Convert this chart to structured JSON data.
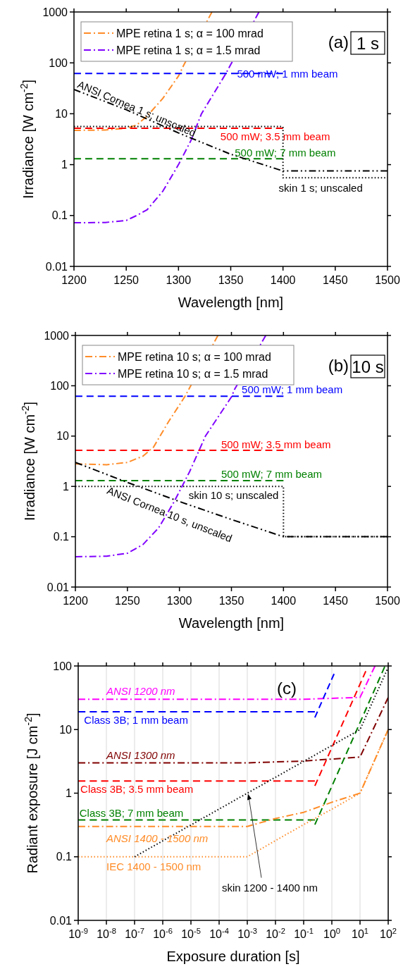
{
  "chart_data": [
    {
      "type": "line",
      "title": "(a)",
      "subtitle": "1 s",
      "xlabel": "Wavelength [nm]",
      "ylabel": "Irradiance [W cm$^{-2}$]",
      "log": "y",
      "legend": "top left",
      "grid": false,
      "xlim": [
        1200,
        1500
      ],
      "xticks": [
        1200,
        1250,
        1300,
        1350,
        1400,
        1450,
        1500
      ],
      "ylim": [
        0.01,
        1000
      ],
      "yticks": [
        0.01,
        0.1,
        1,
        10,
        100,
        1000
      ],
      "series": [
        {
          "name": "MPE retina 1 s; α = 100 mrad",
          "color": "#ff8c28",
          "line_style": "dashdot",
          "x": [
            1200,
            1230,
            1250,
            1260,
            1270,
            1285,
            1300,
            1305,
            1332
          ],
          "values": [
            4.7,
            4.8,
            5.2,
            6,
            9,
            20,
            55,
            90,
            1000
          ]
        },
        {
          "name": "MPE retina 1 s; α = 1.5 mrad",
          "color": "#8000ff",
          "line_style": "dashdot",
          "x": [
            1200,
            1230,
            1250,
            1260,
            1270,
            1285,
            1300,
            1312,
            1322,
            1345,
            1349,
            1377
          ],
          "values": [
            0.072,
            0.073,
            0.08,
            0.1,
            0.13,
            0.3,
            1,
            3,
            10,
            60,
            85,
            1000
          ]
        },
        {
          "color": "#0000ff",
          "line_style": "dashed",
          "x": [
            1200,
            1400
          ],
          "values": [
            62,
            62
          ]
        },
        {
          "color": "#ff0000",
          "line_style": "dashed",
          "x": [
            1200,
            1400
          ],
          "values": [
            5.2,
            5.2
          ]
        },
        {
          "color": "#008000",
          "line_style": "dashed",
          "x": [
            1200,
            1400
          ],
          "values": [
            1.3,
            1.3
          ]
        },
        {
          "color": "#000000",
          "line_style": "dotted",
          "x": [
            1200,
            1400,
            1400,
            1500
          ],
          "values": [
            5.6,
            5.6,
            0.55,
            0.55
          ]
        },
        {
          "color": "#000000",
          "line_style": "dashdotdot",
          "x": [
            1200,
            1250,
            1300,
            1350,
            1400,
            1500
          ],
          "values": [
            30,
            12,
            4.2,
            1.6,
            0.75,
            0.75
          ]
        }
      ],
      "annotations": [
        "500 mW; 1 mm beam",
        "500 mW; 3.5 mm beam",
        "500 mW; 7 mm beam",
        "skin 1 s; unscaled",
        "ANSI Cornea 1 s; unscaled"
      ]
    },
    {
      "type": "line",
      "title": "(b)",
      "subtitle": "10 s",
      "xlabel": "Wavelength [nm]",
      "ylabel": "Irradiance [W cm$^{-2}$]",
      "log": "y",
      "legend": "top left",
      "grid": false,
      "xlim": [
        1200,
        1500
      ],
      "xticks": [
        1200,
        1250,
        1300,
        1350,
        1400,
        1450,
        1500
      ],
      "ylim": [
        0.01,
        1000
      ],
      "yticks": [
        0.01,
        0.1,
        1,
        10,
        100,
        1000
      ],
      "series": [
        {
          "name": "MPE retina 10 s; α = 100 mrad",
          "color": "#ff8c28",
          "line_style": "dashdot",
          "x": [
            1200,
            1230,
            1250,
            1265,
            1275,
            1290,
            1305,
            1309,
            1337
          ],
          "values": [
            2.8,
            2.7,
            3,
            4,
            6,
            20,
            60,
            85,
            1000
          ]
        },
        {
          "name": "MPE retina 10 s; α = 1.5 mrad",
          "color": "#8000ff",
          "line_style": "dashdot",
          "x": [
            1200,
            1230,
            1250,
            1265,
            1280,
            1295,
            1310,
            1325,
            1350,
            1353,
            1383
          ],
          "values": [
            0.04,
            0.041,
            0.047,
            0.07,
            0.15,
            0.5,
            2,
            10,
            60,
            85,
            1000
          ]
        },
        {
          "color": "#0000ff",
          "line_style": "dashed",
          "x": [
            1200,
            1400
          ],
          "values": [
            62,
            62
          ]
        },
        {
          "color": "#ff0000",
          "line_style": "dashed",
          "x": [
            1200,
            1400
          ],
          "values": [
            5.2,
            5.2
          ]
        },
        {
          "color": "#008000",
          "line_style": "dashed",
          "x": [
            1200,
            1400
          ],
          "values": [
            1.3,
            1.3
          ]
        },
        {
          "color": "#000000",
          "line_style": "dotted",
          "x": [
            1200,
            1400,
            1400,
            1500
          ],
          "values": [
            1,
            1,
            0.1,
            0.1
          ]
        },
        {
          "color": "#000000",
          "line_style": "dashdotdot",
          "x": [
            1200,
            1250,
            1300,
            1350,
            1400,
            1500
          ],
          "values": [
            3,
            1.2,
            0.5,
            0.22,
            0.1,
            0.1
          ]
        }
      ],
      "annotations": [
        "500 mW; 1 mm beam",
        "500 mW; 3.5 mm beam",
        "500 mW; 7 mm beam",
        "skin 10 s; unscaled",
        "ANSI Cornea 10 s, unscaled"
      ]
    },
    {
      "type": "line",
      "title": "(c)",
      "xlabel": "Exposure duration [s]",
      "ylabel": "Radiant exposure [J cm$^{-2}$]",
      "log": "xy",
      "legend": false,
      "grid": "x",
      "xlim": [
        1e-09,
        100
      ],
      "xticks": [
        {
          "value": 1e-09,
          "label": "10$^{-9}$"
        },
        {
          "value": 1e-08,
          "label": "10$^{-8}$"
        },
        {
          "value": 1e-07,
          "label": "10$^{-7}$"
        },
        {
          "value": 1e-06,
          "label": "10$^{-6}$"
        },
        {
          "value": 1e-05,
          "label": "10$^{-5}$"
        },
        {
          "value": 0.0001,
          "label": "10$^{-4}$"
        },
        {
          "value": 0.001,
          "label": "10$^{-3}$"
        },
        {
          "value": 0.01,
          "label": "10$^{-2}$"
        },
        {
          "value": 0.1,
          "label": "10$^{-1}$"
        },
        {
          "value": 1,
          "label": "10$^{0}$"
        },
        {
          "value": 10,
          "label": "10$^{1}$"
        },
        {
          "value": 100,
          "label": "10$^{2}$"
        }
      ],
      "ylim": [
        0.01,
        100
      ],
      "yticks": [
        0.01,
        0.1,
        1,
        10,
        100
      ],
      "series": [
        {
          "color": "#ff00ff",
          "line_style": "dashdot",
          "x": [
            1e-09,
            0.1,
            10,
            34
          ],
          "values": [
            30,
            30,
            32,
            100
          ]
        },
        {
          "color": "#0000ff",
          "line_style": "dashed",
          "x": [
            1e-09,
            0.25
          ],
          "values": [
            19,
            19
          ]
        },
        {
          "color": "#0000ff",
          "line_style": "dashed",
          "x": [
            0.25,
            1.2
          ],
          "values": [
            15.5,
            75
          ]
        },
        {
          "color": "#800000",
          "line_style": "dashdot",
          "x": [
            1e-09,
            0.001,
            0.1,
            10,
            100
          ],
          "values": [
            3,
            3,
            3.2,
            3.7,
            32
          ]
        },
        {
          "color": "#ff0000",
          "line_style": "dashed",
          "x": [
            1e-09,
            0.25
          ],
          "values": [
            1.55,
            1.55
          ]
        },
        {
          "color": "#ff0000",
          "line_style": "dashed",
          "x": [
            0.25,
            16
          ],
          "values": [
            1.3,
            83
          ]
        },
        {
          "color": "#008000",
          "line_style": "dashed",
          "x": [
            1e-09,
            0.25
          ],
          "values": [
            0.38,
            0.38
          ]
        },
        {
          "color": "#008000",
          "line_style": "dashed",
          "x": [
            0.25,
            75
          ],
          "values": [
            0.32,
            97
          ]
        },
        {
          "color": "#ff8c28",
          "line_style": "dashdot",
          "x": [
            1e-09,
            0.001,
            0.01,
            0.1,
            1,
            10,
            100
          ],
          "values": [
            0.3,
            0.3,
            0.4,
            0.5,
            0.72,
            1,
            10
          ]
        },
        {
          "color": "#ff8c28",
          "line_style": "dotted",
          "x": [
            1e-09,
            0.001,
            0.01,
            0.1,
            1,
            10,
            100
          ],
          "values": [
            0.1,
            0.1,
            0.18,
            0.32,
            0.56,
            1,
            10
          ]
        },
        {
          "color": "#000000",
          "line_style": "dotted",
          "x": [
            1e-07,
            0.001,
            10,
            100
          ],
          "values": [
            0.1,
            1,
            10,
            95
          ]
        }
      ],
      "annotations": [
        "ANSI 1200 nm",
        "Class 3B; 1 mm beam",
        "ANSI 1300 nm",
        "Class 3B; 3.5 mm beam",
        "Class 3B; 7 mm beam",
        "ANSI 1400 - 1500 nm",
        "IEC 1400 - 1500 nm",
        {
          "text": "skin 1200 - 1400 nm",
          "x": 0.001,
          "y": 1
        }
      ]
    }
  ]
}
